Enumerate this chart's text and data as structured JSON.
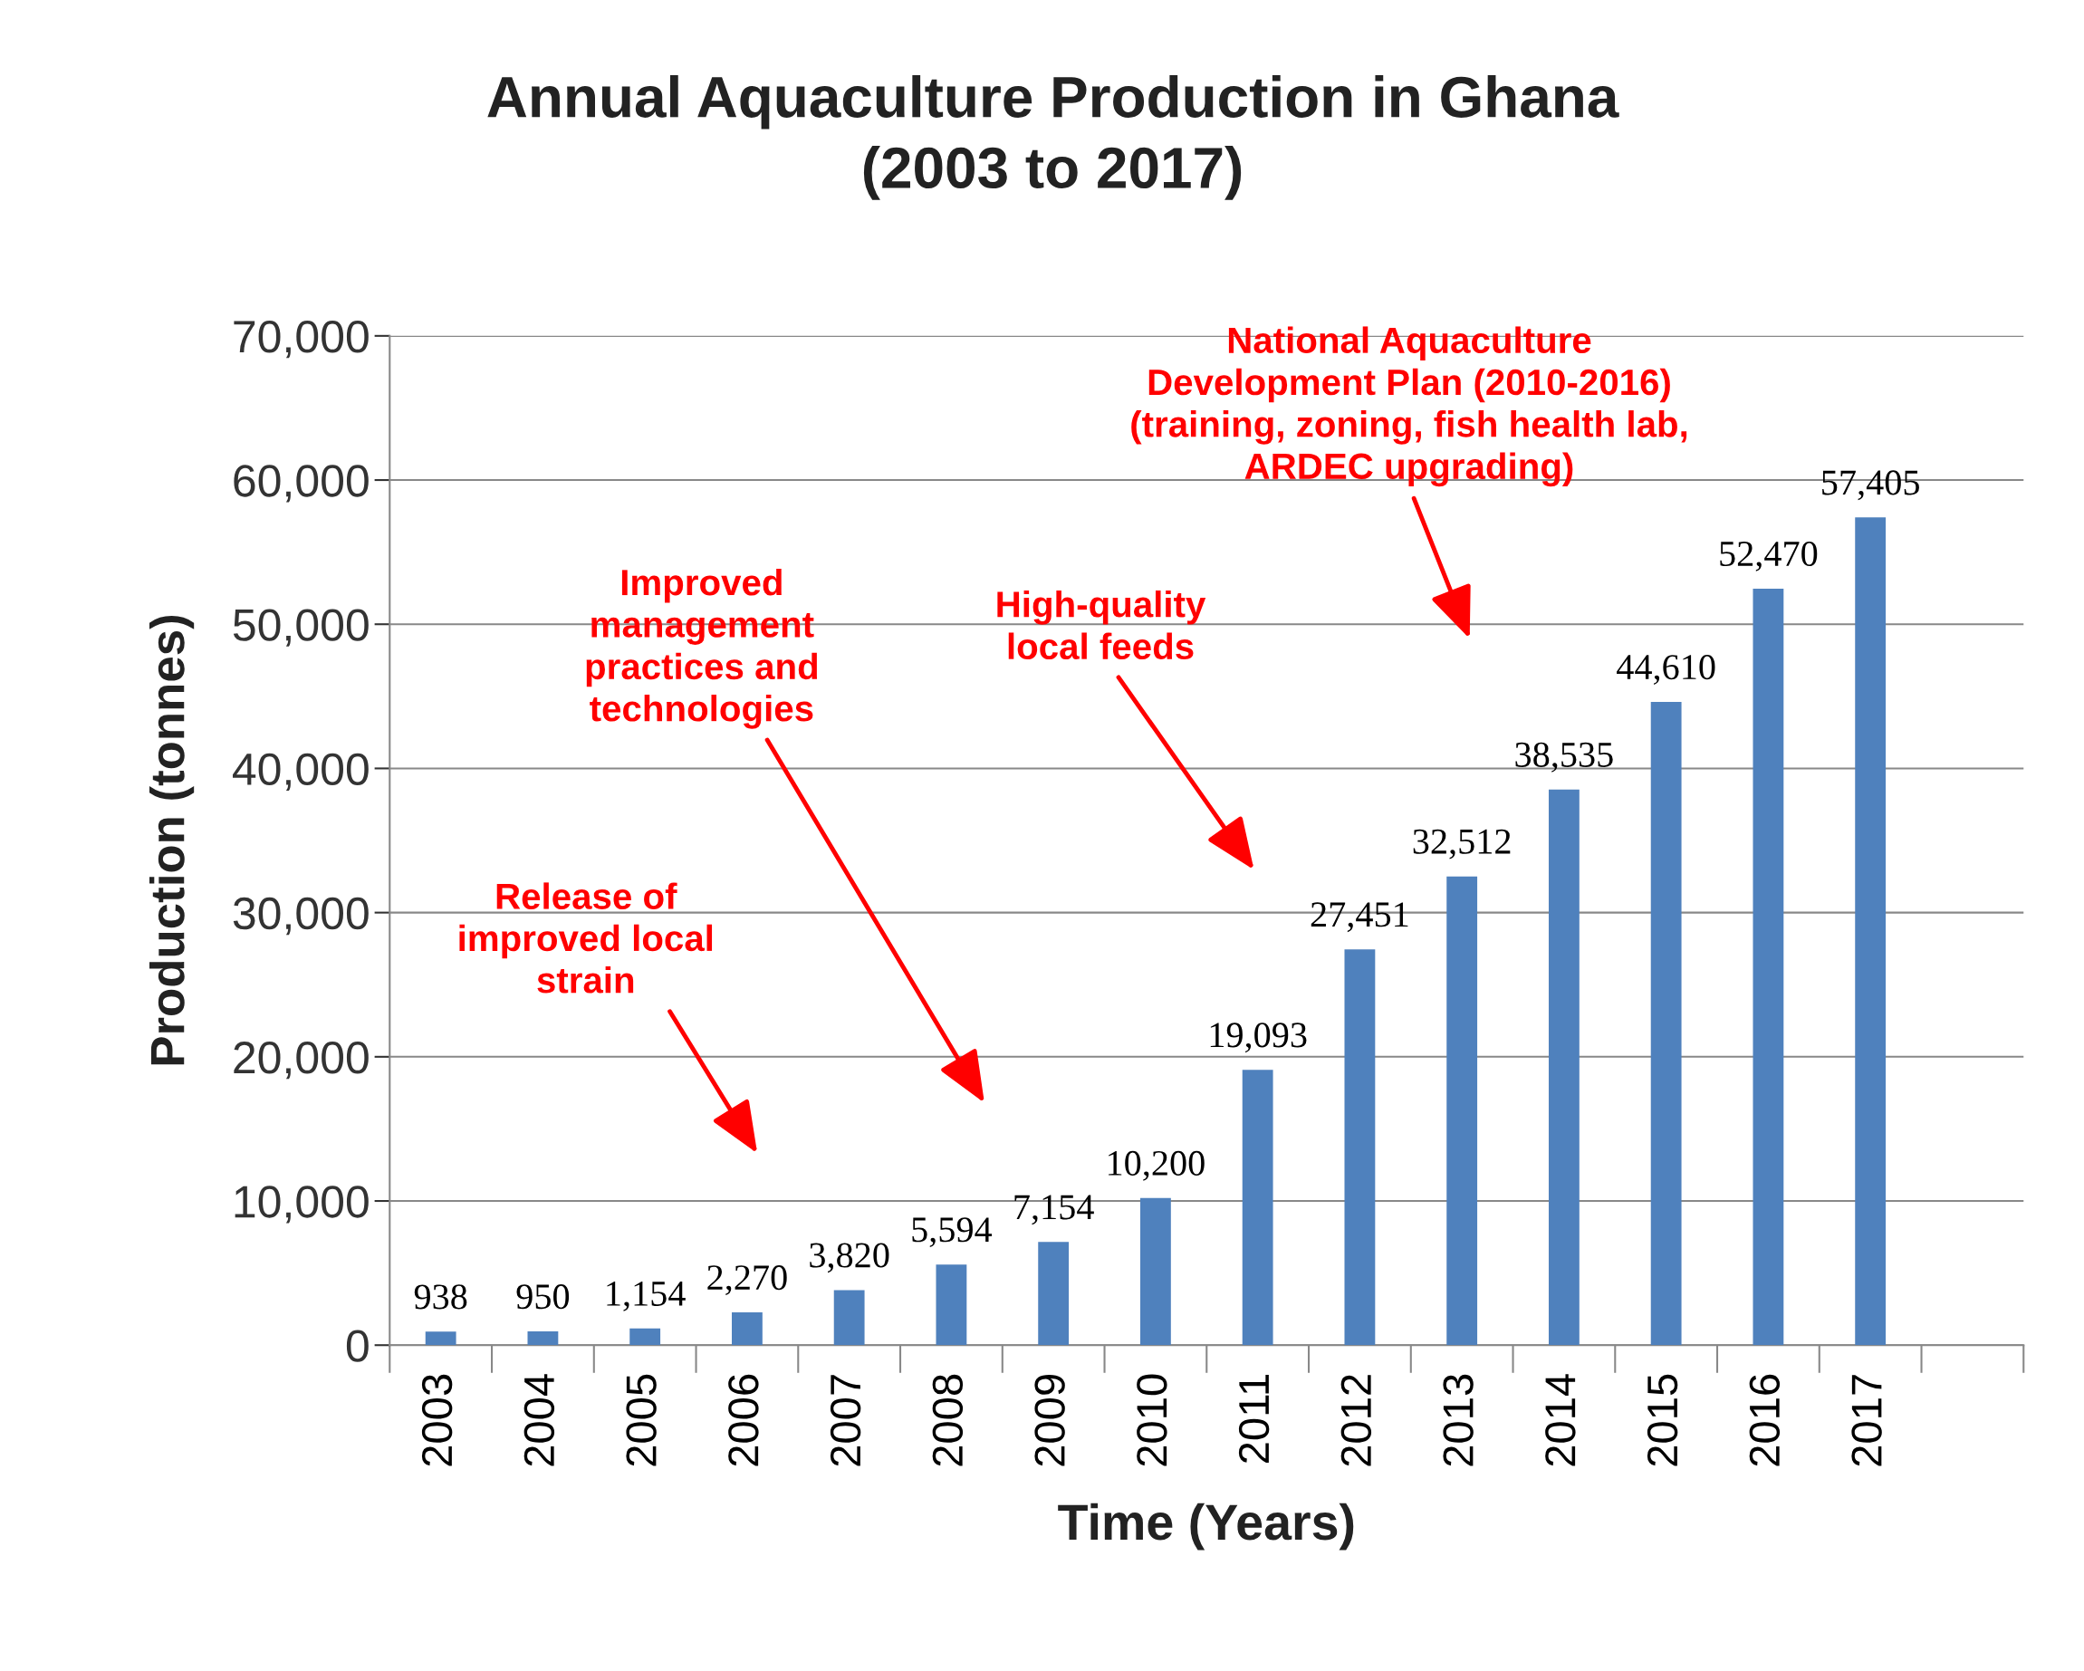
{
  "chart_data": {
    "type": "bar",
    "title": "Annual Aquaculture Production in Ghana\n(2003 to 2017)",
    "xlabel": "Time (Years)",
    "ylabel": "Production (tonnes)",
    "categories": [
      "2003",
      "2004",
      "2005",
      "2006",
      "2007",
      "2008",
      "2009",
      "2010",
      "2011",
      "2012",
      "2013",
      "2014",
      "2015",
      "2016",
      "2017",
      null
    ],
    "values": [
      938,
      950,
      1154,
      2270,
      3820,
      5594,
      7154,
      10200,
      19093,
      27451,
      32512,
      38535,
      44610,
      52470,
      57405,
      null
    ],
    "color": "#4f81bd",
    "value_labels": [
      "938",
      "950",
      "1,154",
      "2,270",
      "3,820",
      "5,594",
      "7,154",
      "10,200",
      "19,093",
      "27,451",
      "32,512",
      "38,535",
      "44,610",
      "52,470",
      "57,405",
      null
    ],
    "ylim": [
      0,
      70000
    ],
    "yticks": [
      {
        "value": 0,
        "label": "0"
      },
      {
        "value": 10000,
        "label": "10,000"
      },
      {
        "value": 20000,
        "label": "20,000"
      },
      {
        "value": 30000,
        "label": "30,000"
      },
      {
        "value": 40000,
        "label": "40,000"
      },
      {
        "value": 50000,
        "label": "50,000"
      },
      {
        "value": 60000,
        "label": "60,000"
      },
      {
        "value": 70000,
        "label": "70,000"
      }
    ],
    "grid": "y",
    "annotations": [
      "Release of\nimproved local\nstrain",
      "Improved\nmanagement\npractices and\ntechnologies",
      "High-quality\nlocal feeds",
      "National Aquaculture\nDevelopment Plan (2010-2016)\n(training, zoning, fish health lab,\nARDEC upgrading)"
    ]
  }
}
